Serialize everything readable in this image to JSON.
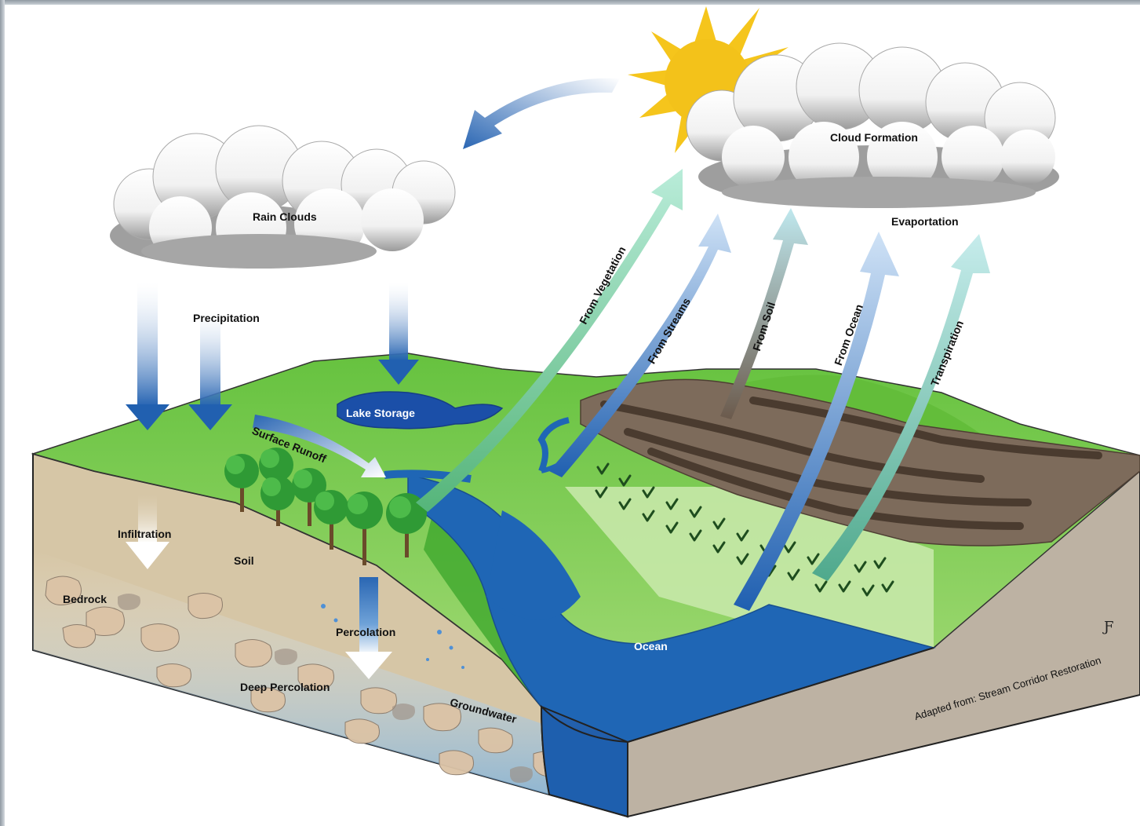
{
  "labels": {
    "rain_clouds": "Rain Clouds",
    "precipitation": "Precipitation",
    "lake_storage": "Lake Storage",
    "surface_runoff": "Surface Runoff",
    "infiltration": "Infiltration",
    "soil": "Soil",
    "bedrock": "Bedrock",
    "percolation": "Percolation",
    "deep_percolation": "Deep Percolation",
    "groundwater": "Groundwater",
    "ocean": "Ocean",
    "cloud_formation": "Cloud Formation",
    "evaporation": "Evaportation",
    "from_vegetation": "From Vegetation",
    "from_streams": "From Streams",
    "from_soil": "From Soil",
    "from_ocean": "From Ocean",
    "transpiration": "Transpiration"
  },
  "credit": "Adapted from: Stream Corridor Restoration",
  "signature": "Ƒ",
  "colors": {
    "grass": "#5fbf3a",
    "water": "#1f66b5",
    "soil": "#d6c6a6",
    "bedrock": "#d9c1a4",
    "mud": "#7a6858",
    "sun": "#f2c21a",
    "arrow_blue": "#2e6db4",
    "arrow_green": "#7ec9a3"
  }
}
